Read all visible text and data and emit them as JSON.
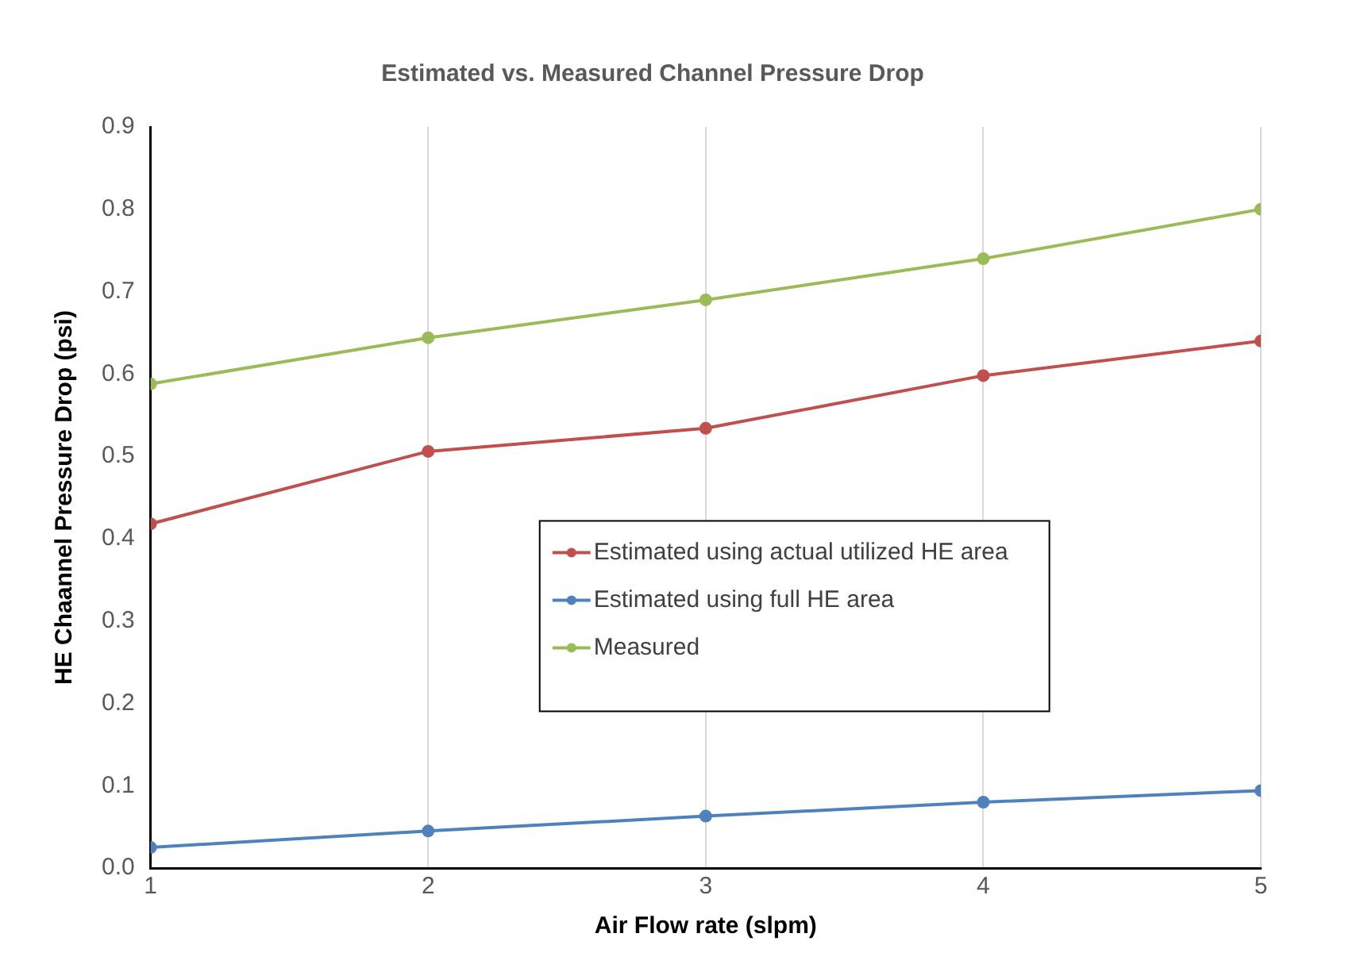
{
  "chart_data": {
    "type": "line",
    "title": "Estimated vs. Measured Channel Pressure Drop",
    "xlabel": "Air Flow rate (slpm)",
    "ylabel": "HE Chaannel Pressure Drop (psi)",
    "x": [
      1,
      2,
      3,
      4,
      5
    ],
    "series": [
      {
        "name": "Estimated using actual utilized HE area",
        "color": "#c0504d",
        "values": [
          0.418,
          0.506,
          0.534,
          0.598,
          0.64
        ]
      },
      {
        "name": "Estimated using full HE area",
        "color": "#4f81bd",
        "values": [
          0.025,
          0.045,
          0.063,
          0.08,
          0.094
        ]
      },
      {
        "name": "Measured",
        "color": "#9bbb59",
        "values": [
          0.588,
          0.644,
          0.69,
          0.74,
          0.8
        ]
      }
    ],
    "xlim": [
      1,
      5
    ],
    "xticks": [
      1,
      2,
      3,
      4,
      5
    ],
    "ylim": [
      0,
      0.9
    ],
    "yticks": [
      {
        "value": 0,
        "label": "0.0"
      },
      0.1,
      0.2,
      0.3,
      0.4,
      0.5,
      0.6,
      0.7,
      0.8,
      0.9
    ],
    "grid": "x",
    "legend": "center",
    "marker": "circle",
    "line_style": "solid"
  }
}
